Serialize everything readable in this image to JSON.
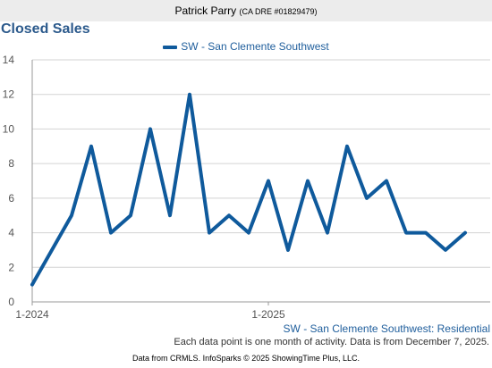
{
  "header": {
    "agent_name": "Patrick Parry",
    "agent_license": "(CA DRE #01829479)"
  },
  "footer": {
    "series_label": "SW - San Clemente Southwest: Residential",
    "note": "Each data point is one month of activity. Data is from December 7, 2025.",
    "credit": "Data from CRMLS. InfoSparks © 2025 ShowingTime Plus, LLC."
  },
  "colors": {
    "line": "#0f5a9c",
    "title": "#2c5a8c",
    "grid": "#d3d3d3"
  },
  "chart_data": {
    "type": "line",
    "title": "Closed Sales",
    "x": [
      "1-2024",
      "2-2024",
      "3-2024",
      "4-2024",
      "5-2024",
      "6-2024",
      "7-2024",
      "8-2024",
      "9-2024",
      "10-2024",
      "11-2024",
      "12-2024",
      "1-2025",
      "2-2025",
      "3-2025",
      "4-2025",
      "5-2025",
      "6-2025",
      "7-2025",
      "8-2025",
      "9-2025",
      "10-2025",
      "11-2025"
    ],
    "x_tick_labels": [
      "1-2024",
      "1-2025"
    ],
    "series": [
      {
        "name": "SW - San Clemente Southwest",
        "values": [
          1,
          3,
          5,
          9,
          4,
          5,
          10,
          5,
          12,
          4,
          5,
          4,
          7,
          3,
          7,
          4,
          9,
          6,
          7,
          4,
          4,
          3,
          4
        ]
      }
    ],
    "ylim": [
      0,
      14
    ],
    "y_ticks": [
      0,
      2,
      4,
      6,
      8,
      10,
      12,
      14
    ],
    "grid": true,
    "legend_position": "top-center"
  }
}
